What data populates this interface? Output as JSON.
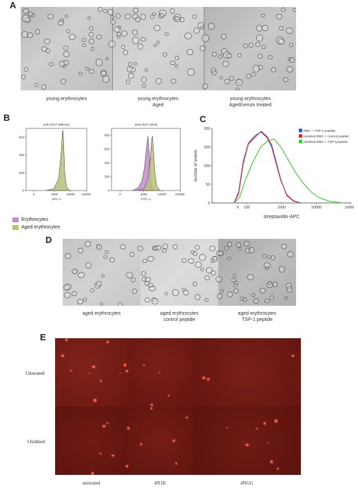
{
  "panels": {
    "A": {
      "label": "A",
      "captions": [
        [
          "young erythrocytes"
        ],
        [
          "young erythrocytes",
          "Aged"
        ],
        [
          "young erythrocytes",
          "Aged/serum treated"
        ]
      ]
    },
    "B": {
      "label": "B",
      "legend": [
        "Erythrocytes",
        "Aged erythrocytes"
      ],
      "colors": {
        "erythrocytes": "#c48bd0",
        "aged": "#b9c078"
      }
    },
    "C": {
      "label": "C"
    },
    "D": {
      "label": "D",
      "captions": [
        [
          "aged erythrocytes"
        ],
        [
          "aged erythrocytes",
          "control peptide"
        ],
        [
          "aged erythrocytes",
          "TSP-1 peptide"
        ]
      ]
    },
    "E": {
      "label": "E",
      "row_labels": [
        "Untreated",
        "Oxidized"
      ],
      "col_labels": [
        "untreated",
        "4N1K",
        "4NGG"
      ]
    }
  },
  "chart_data": [
    {
      "type": "area",
      "panel": "B-left",
      "title": "anti-CD47 (B6H12)",
      "xlabel": "APC-A",
      "ylabel": "",
      "x_scale": "log",
      "x_ticks": [
        "0",
        "1000",
        "10000",
        "100000"
      ],
      "y_ticks": [
        0,
        200,
        400,
        600
      ],
      "ylim": [
        0,
        700
      ],
      "series": [
        {
          "name": "Aged erythrocytes",
          "color": "#b9c078",
          "x": [
            300,
            900,
            1800,
            2600,
            3100,
            3400,
            3700,
            4300,
            5600,
            9000
          ],
          "y": [
            0,
            20,
            130,
            420,
            650,
            680,
            540,
            220,
            40,
            0
          ]
        }
      ]
    },
    {
      "type": "area",
      "panel": "B-right",
      "title": "anti-CD47 (2D3)",
      "xlabel": "FITC-A",
      "ylabel": "",
      "x_scale": "log",
      "x_ticks": [
        "0",
        "1000",
        "10000",
        "100000"
      ],
      "y_ticks": [
        0,
        200,
        400,
        600,
        800
      ],
      "ylim": [
        0,
        900
      ],
      "series": [
        {
          "name": "Erythrocytes",
          "color": "#c48bd0",
          "x": [
            250,
            500,
            800,
            1100,
            1400,
            1700,
            2000,
            2300,
            2800,
            4000
          ],
          "y": [
            0,
            40,
            140,
            330,
            600,
            790,
            560,
            230,
            50,
            0
          ]
        },
        {
          "name": "Aged erythrocytes",
          "color": "#b9c078",
          "x": [
            500,
            1100,
            1700,
            2300,
            2700,
            3000,
            3400,
            4100,
            5200,
            8000
          ],
          "y": [
            0,
            30,
            160,
            460,
            740,
            790,
            600,
            260,
            60,
            0
          ]
        }
      ]
    },
    {
      "type": "line",
      "panel": "C",
      "title": "",
      "xlabel": "streptavidin-APC",
      "ylabel": "number of events",
      "x_scale": "log",
      "x_ticks": [
        "0",
        "100",
        "1000",
        "10000",
        "100000"
      ],
      "y_ticks": [
        0,
        50,
        100,
        150,
        200
      ],
      "ylim": [
        0,
        200
      ],
      "series": [
        {
          "name": "RBC + TSP-1 peptide",
          "color": "#2a4fd8",
          "x": [
            -40,
            10,
            60,
            110,
            180,
            260,
            380,
            520,
            700,
            950,
            1400,
            2200,
            3500
          ],
          "y": [
            0,
            30,
            110,
            160,
            182,
            190,
            175,
            150,
            105,
            60,
            22,
            6,
            0
          ]
        },
        {
          "name": "oxidized RBC + control peptide",
          "color": "#e0262a",
          "x": [
            -40,
            10,
            60,
            110,
            180,
            260,
            380,
            520,
            700,
            950,
            1400,
            2200,
            3500
          ],
          "y": [
            0,
            25,
            105,
            158,
            178,
            192,
            178,
            155,
            110,
            62,
            20,
            5,
            0
          ]
        },
        {
          "name": "oxidized RBC + TSP-1peptide",
          "color": "#33cc33",
          "x": [
            -40,
            20,
            80,
            150,
            250,
            380,
            600,
            950,
            1500,
            2500,
            4000,
            7000,
            12000,
            25000,
            60000
          ],
          "y": [
            0,
            15,
            60,
            110,
            150,
            165,
            172,
            150,
            118,
            82,
            55,
            30,
            14,
            4,
            0
          ]
        }
      ]
    }
  ]
}
